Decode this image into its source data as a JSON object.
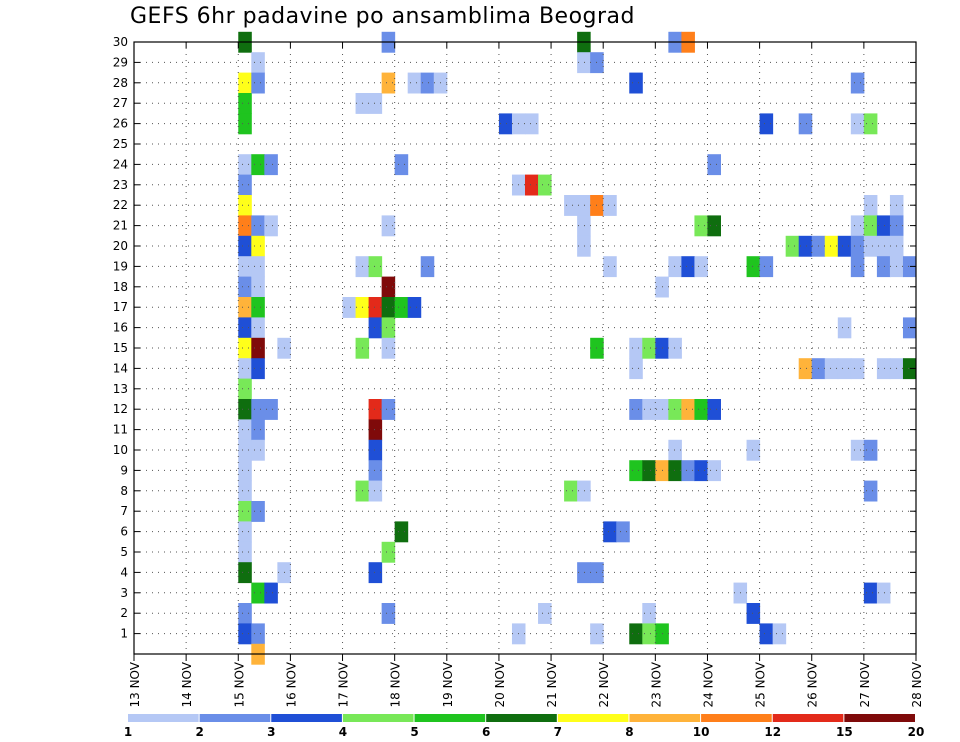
{
  "chart_data": {
    "type": "heatmap",
    "title": "GEFS 6hr padavine po ansamblima Beograd",
    "x_ticks": [
      "13 NOV",
      "14 NOV",
      "15 NOV",
      "16 NOV",
      "17 NOV",
      "18 NOV",
      "19 NOV",
      "20 NOV",
      "21 NOV",
      "22 NOV",
      "23 NOV",
      "24 NOV",
      "25 NOV",
      "26 NOV",
      "27 NOV",
      "28 NOV"
    ],
    "y_ticks": [
      "1",
      "2",
      "3",
      "4",
      "5",
      "6",
      "7",
      "8",
      "9",
      "10",
      "11",
      "12",
      "13",
      "14",
      "15",
      "16",
      "17",
      "18",
      "19",
      "20",
      "21",
      "22",
      "23",
      "24",
      "25",
      "26",
      "27",
      "28",
      "29",
      "30"
    ],
    "ylim": [
      0,
      30
    ],
    "x_range_days": [
      13,
      28
    ],
    "grid": true,
    "legend": {
      "placement": "bottom",
      "colors": [
        "#b5c8f5",
        "#6a8ee8",
        "#1f4fd6",
        "#78e858",
        "#1fc41f",
        "#0f6e0f",
        "#ffff1a",
        "#ffb33a",
        "#ff7f1a",
        "#e32a1a",
        "#7f0a0a"
      ],
      "labels": [
        "1",
        "2",
        "3",
        "4",
        "5",
        "6",
        "7",
        "8",
        "10",
        "12",
        "15",
        "20"
      ]
    },
    "cells": [
      [
        15.0,
        30,
        5
      ],
      [
        15.0,
        28,
        6
      ],
      [
        15.0,
        27,
        4
      ],
      [
        15.0,
        26,
        4
      ],
      [
        15.0,
        24,
        0
      ],
      [
        15.0,
        23,
        1
      ],
      [
        15.0,
        22,
        6
      ],
      [
        15.0,
        21,
        8
      ],
      [
        15.0,
        20,
        2
      ],
      [
        15.0,
        19,
        0
      ],
      [
        15.0,
        18,
        1
      ],
      [
        15.0,
        17,
        7
      ],
      [
        15.0,
        16,
        2
      ],
      [
        15.0,
        15,
        6
      ],
      [
        15.0,
        14,
        0
      ],
      [
        15.0,
        13,
        3
      ],
      [
        15.0,
        12,
        5
      ],
      [
        15.0,
        11,
        0
      ],
      [
        15.0,
        10,
        0
      ],
      [
        15.0,
        9,
        0
      ],
      [
        15.0,
        8,
        0
      ],
      [
        15.0,
        7,
        3
      ],
      [
        15.0,
        6,
        0
      ],
      [
        15.0,
        5,
        0
      ],
      [
        15.0,
        4,
        5
      ],
      [
        15.0,
        2,
        1
      ],
      [
        15.0,
        1,
        2
      ],
      [
        15.25,
        29,
        0
      ],
      [
        15.25,
        28,
        1
      ],
      [
        15.25,
        24,
        4
      ],
      [
        15.25,
        21,
        1
      ],
      [
        15.25,
        20,
        6
      ],
      [
        15.25,
        19,
        0
      ],
      [
        15.25,
        18,
        0
      ],
      [
        15.25,
        17,
        4
      ],
      [
        15.25,
        16,
        0
      ],
      [
        15.25,
        15,
        10
      ],
      [
        15.25,
        14,
        2
      ],
      [
        15.25,
        12,
        1
      ],
      [
        15.25,
        11,
        1
      ],
      [
        15.25,
        10,
        0
      ],
      [
        15.25,
        7,
        1
      ],
      [
        15.25,
        3,
        4
      ],
      [
        15.25,
        1,
        1
      ],
      [
        15.25,
        0,
        7
      ],
      [
        15.5,
        24,
        1
      ],
      [
        15.5,
        21,
        0
      ],
      [
        15.5,
        12,
        1
      ],
      [
        15.5,
        3,
        2
      ],
      [
        15.75,
        15,
        0
      ],
      [
        15.75,
        4,
        0
      ],
      [
        17.0,
        17,
        0
      ],
      [
        17.25,
        27,
        0
      ],
      [
        17.25,
        19,
        0
      ],
      [
        17.25,
        17,
        6
      ],
      [
        17.25,
        15,
        3
      ],
      [
        17.25,
        8,
        3
      ],
      [
        17.5,
        27,
        0
      ],
      [
        17.5,
        19,
        3
      ],
      [
        17.5,
        17,
        9
      ],
      [
        17.5,
        16,
        2
      ],
      [
        17.5,
        12,
        9
      ],
      [
        17.5,
        11,
        10
      ],
      [
        17.5,
        10,
        2
      ],
      [
        17.5,
        9,
        1
      ],
      [
        17.5,
        8,
        0
      ],
      [
        17.5,
        4,
        2
      ],
      [
        17.75,
        30,
        1
      ],
      [
        17.75,
        28,
        7
      ],
      [
        17.75,
        21,
        0
      ],
      [
        17.75,
        18,
        10
      ],
      [
        17.75,
        17,
        5
      ],
      [
        17.75,
        16,
        3
      ],
      [
        17.75,
        15,
        0
      ],
      [
        17.75,
        12,
        1
      ],
      [
        17.75,
        5,
        3
      ],
      [
        17.75,
        2,
        1
      ],
      [
        18.0,
        24,
        1
      ],
      [
        18.0,
        17,
        4
      ],
      [
        18.0,
        6,
        5
      ],
      [
        18.25,
        17,
        2
      ],
      [
        18.25,
        28,
        0
      ],
      [
        18.5,
        28,
        1
      ],
      [
        18.5,
        19,
        1
      ],
      [
        18.75,
        28,
        0
      ],
      [
        20.0,
        26,
        2
      ],
      [
        20.25,
        26,
        0
      ],
      [
        20.25,
        23,
        0
      ],
      [
        20.25,
        1,
        0
      ],
      [
        20.5,
        26,
        0
      ],
      [
        20.5,
        23,
        9
      ],
      [
        20.75,
        23,
        3
      ],
      [
        20.75,
        2,
        0
      ],
      [
        21.25,
        22,
        0
      ],
      [
        21.25,
        8,
        3
      ],
      [
        21.5,
        30,
        5
      ],
      [
        21.5,
        29,
        0
      ],
      [
        21.5,
        22,
        0
      ],
      [
        21.5,
        21,
        0
      ],
      [
        21.5,
        20,
        0
      ],
      [
        21.5,
        8,
        0
      ],
      [
        21.5,
        4,
        1
      ],
      [
        21.75,
        29,
        1
      ],
      [
        21.75,
        22,
        8
      ],
      [
        21.75,
        15,
        4
      ],
      [
        21.75,
        4,
        1
      ],
      [
        21.75,
        1,
        0
      ],
      [
        22.0,
        22,
        0
      ],
      [
        22.0,
        19,
        0
      ],
      [
        22.0,
        6,
        2
      ],
      [
        22.25,
        6,
        1
      ],
      [
        22.5,
        28,
        2
      ],
      [
        22.5,
        15,
        0
      ],
      [
        22.5,
        14,
        0
      ],
      [
        22.5,
        12,
        1
      ],
      [
        22.5,
        9,
        4
      ],
      [
        22.5,
        1,
        5
      ],
      [
        22.75,
        15,
        3
      ],
      [
        22.75,
        12,
        0
      ],
      [
        22.75,
        9,
        5
      ],
      [
        22.75,
        2,
        0
      ],
      [
        22.75,
        1,
        3
      ],
      [
        23.0,
        18,
        0
      ],
      [
        23.0,
        15,
        2
      ],
      [
        23.0,
        12,
        0
      ],
      [
        23.0,
        9,
        7
      ],
      [
        23.0,
        1,
        4
      ],
      [
        23.25,
        30,
        1
      ],
      [
        23.25,
        19,
        0
      ],
      [
        23.25,
        15,
        0
      ],
      [
        23.25,
        12,
        3
      ],
      [
        23.25,
        10,
        0
      ],
      [
        23.25,
        9,
        5
      ],
      [
        23.5,
        30,
        8
      ],
      [
        23.5,
        19,
        2
      ],
      [
        23.5,
        12,
        7
      ],
      [
        23.5,
        9,
        1
      ],
      [
        23.75,
        21,
        3
      ],
      [
        23.75,
        19,
        0
      ],
      [
        23.75,
        12,
        4
      ],
      [
        23.75,
        9,
        2
      ],
      [
        24.0,
        24,
        1
      ],
      [
        24.0,
        21,
        5
      ],
      [
        24.0,
        12,
        2
      ],
      [
        24.0,
        9,
        0
      ],
      [
        24.5,
        3,
        0
      ],
      [
        24.75,
        19,
        4
      ],
      [
        24.75,
        10,
        0
      ],
      [
        24.75,
        2,
        2
      ],
      [
        25.0,
        26,
        2
      ],
      [
        25.0,
        19,
        1
      ],
      [
        25.0,
        1,
        2
      ],
      [
        25.25,
        1,
        0
      ],
      [
        25.5,
        20,
        3
      ],
      [
        25.75,
        26,
        1
      ],
      [
        25.75,
        20,
        2
      ],
      [
        25.75,
        14,
        7
      ],
      [
        26.0,
        20,
        1
      ],
      [
        26.0,
        14,
        1
      ],
      [
        26.25,
        20,
        6
      ],
      [
        26.25,
        14,
        0
      ],
      [
        26.5,
        20,
        2
      ],
      [
        26.5,
        16,
        0
      ],
      [
        26.5,
        14,
        0
      ],
      [
        26.75,
        28,
        1
      ],
      [
        26.75,
        26,
        0
      ],
      [
        26.75,
        21,
        0
      ],
      [
        26.75,
        20,
        1
      ],
      [
        26.75,
        19,
        1
      ],
      [
        26.75,
        14,
        0
      ],
      [
        26.75,
        10,
        0
      ],
      [
        27.0,
        26,
        3
      ],
      [
        27.0,
        22,
        0
      ],
      [
        27.0,
        21,
        3
      ],
      [
        27.0,
        20,
        0
      ],
      [
        27.0,
        10,
        1
      ],
      [
        27.0,
        8,
        1
      ],
      [
        27.0,
        3,
        2
      ],
      [
        27.25,
        21,
        2
      ],
      [
        27.25,
        20,
        0
      ],
      [
        27.25,
        19,
        1
      ],
      [
        27.25,
        14,
        0
      ],
      [
        27.25,
        3,
        0
      ],
      [
        27.5,
        22,
        0
      ],
      [
        27.5,
        21,
        1
      ],
      [
        27.5,
        20,
        0
      ],
      [
        27.5,
        19,
        0
      ],
      [
        27.5,
        14,
        0
      ],
      [
        27.75,
        19,
        1
      ],
      [
        27.75,
        16,
        1
      ],
      [
        27.75,
        14,
        5
      ]
    ]
  }
}
